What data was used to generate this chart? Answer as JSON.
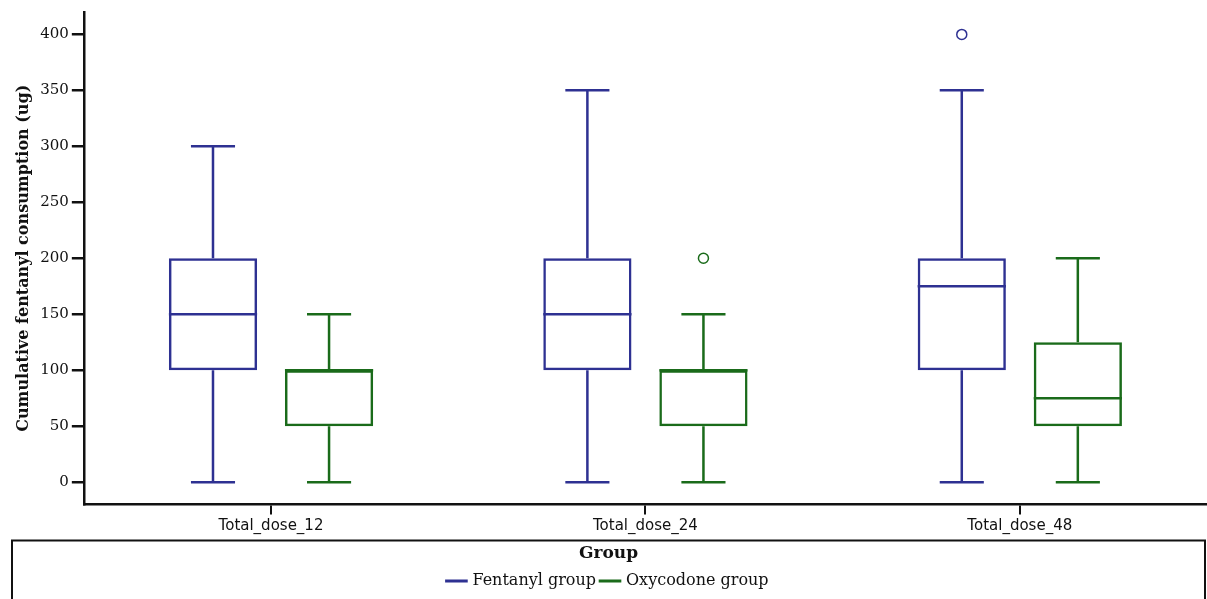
{
  "chart_data": {
    "type": "box",
    "ylabel": "Cumulative fentanyl consumption (ug)",
    "legend_title": "Group",
    "categories": [
      "Total_dose_12",
      "Total_dose_24",
      "Total_dose_48"
    ],
    "series": [
      {
        "name": "Fentanyl group",
        "color": "#2e3192",
        "boxes": [
          {
            "low": 0,
            "q1": 100,
            "median": 150,
            "q3": 200,
            "high": 300
          },
          {
            "low": 0,
            "q1": 100,
            "median": 150,
            "q3": 200,
            "high": 350
          },
          {
            "low": 0,
            "q1": 100,
            "median": 175,
            "q3": 200,
            "high": 350,
            "outliers": [
              400
            ]
          }
        ]
      },
      {
        "name": "Oxycodone group",
        "color": "#1a6b1a",
        "boxes": [
          {
            "low": 0,
            "q1": 50,
            "median": 100,
            "q3": 100,
            "high": 150
          },
          {
            "low": 0,
            "q1": 50,
            "median": 100,
            "q3": 100,
            "high": 150,
            "outliers": [
              200
            ]
          },
          {
            "low": 0,
            "q1": 50,
            "median": 75,
            "q3": 125,
            "high": 200
          }
        ]
      }
    ],
    "ylim": [
      -20,
      420
    ],
    "yticks": [
      0,
      50,
      100,
      150,
      200,
      250,
      300,
      350,
      400
    ],
    "grid": false,
    "legend": "bottom"
  }
}
